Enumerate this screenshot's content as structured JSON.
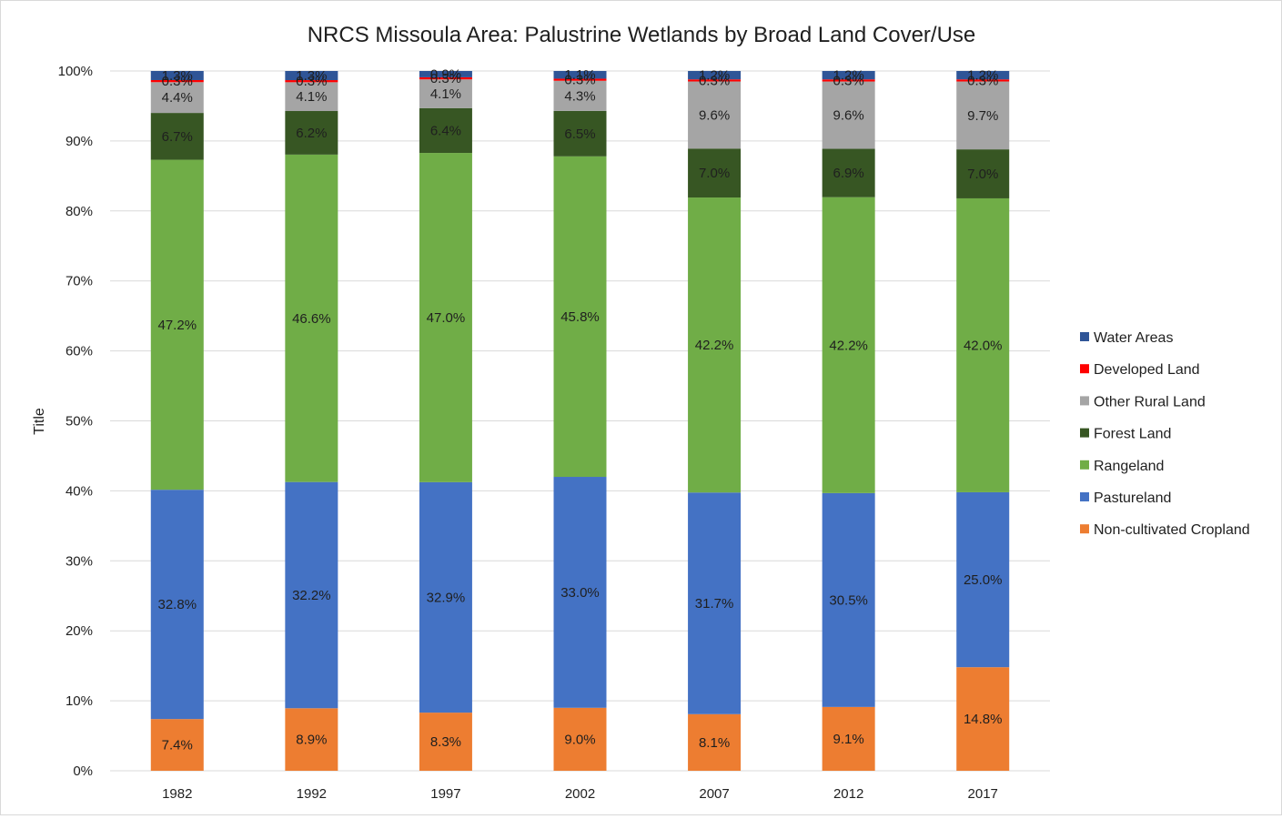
{
  "chart_data": {
    "type": "bar",
    "stacked": true,
    "percent": true,
    "title": "NRCS Missoula Area: Palustrine Wetlands by Broad Land Cover/Use",
    "xlabel": "",
    "ylabel": "Title",
    "ylim": [
      0,
      100
    ],
    "y_ticks": [
      "0%",
      "10%",
      "20%",
      "30%",
      "40%",
      "50%",
      "60%",
      "70%",
      "80%",
      "90%",
      "100%"
    ],
    "grid": true,
    "legend_position": "right",
    "categories": [
      "1982",
      "1992",
      "1997",
      "2002",
      "2007",
      "2012",
      "2017"
    ],
    "series": [
      {
        "name": "Non-cultivated Cropland",
        "color": "#ed7d31",
        "values": [
          7.4,
          8.9,
          8.3,
          9.0,
          8.1,
          9.1,
          14.8
        ]
      },
      {
        "name": "Pastureland",
        "color": "#4472c4",
        "values": [
          32.8,
          32.2,
          32.9,
          33.0,
          31.7,
          30.5,
          25.0
        ]
      },
      {
        "name": "Rangeland",
        "color": "#70ad47",
        "values": [
          47.2,
          46.6,
          47.0,
          45.8,
          42.2,
          42.2,
          42.0
        ]
      },
      {
        "name": "Forest Land",
        "color": "#375623",
        "values": [
          6.7,
          6.2,
          6.4,
          6.5,
          7.0,
          6.9,
          7.0
        ]
      },
      {
        "name": "Other Rural Land",
        "color": "#a5a5a5",
        "values": [
          4.4,
          4.1,
          4.1,
          4.3,
          9.6,
          9.6,
          9.7
        ]
      },
      {
        "name": "Developed Land",
        "color": "#ff0000",
        "values": [
          0.3,
          0.3,
          0.3,
          0.3,
          0.3,
          0.3,
          0.3
        ]
      },
      {
        "name": "Water Areas",
        "color": "#2f5597",
        "values": [
          1.3,
          1.3,
          0.9,
          1.1,
          1.2,
          1.2,
          1.2
        ]
      }
    ]
  }
}
